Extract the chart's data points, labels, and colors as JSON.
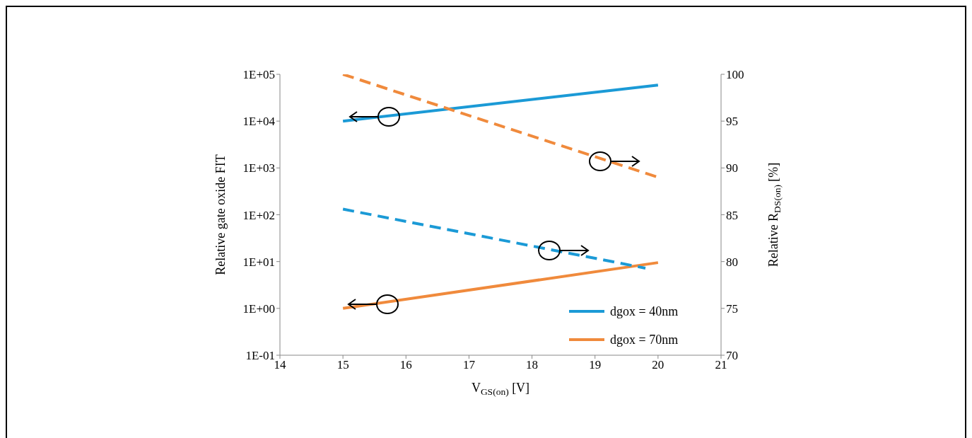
{
  "chart_data": {
    "type": "line",
    "xlabel": "V$_{GS(on)}$ [V]",
    "ylabel": "Relative  gate oxide  FIT",
    "y2label": "Relative  R$_{DS(on)}$ [%]",
    "log": "y",
    "xlim": [
      14,
      21
    ],
    "xticks": [
      14,
      15,
      16,
      17,
      18,
      19,
      20,
      21
    ],
    "ylim": [
      0.1,
      100000
    ],
    "yticks": [
      {
        "value": 0.1,
        "label": "1E-01"
      },
      {
        "value": 1,
        "label": "1E+00"
      },
      {
        "value": 10,
        "label": "1E+01"
      },
      {
        "value": 100,
        "label": "1E+02"
      },
      {
        "value": 1000,
        "label": "1E+03"
      },
      {
        "value": 10000,
        "label": "1E+04"
      },
      {
        "value": 100000,
        "label": "1E+05"
      }
    ],
    "y2lim": [
      70,
      100
    ],
    "y2ticks": [
      70,
      75,
      80,
      85,
      90,
      95,
      100
    ],
    "grid": false,
    "legend": "bottom right",
    "marker": "none",
    "series": [
      {
        "name": "dgox = 40nm",
        "color": "#1b9ad6",
        "x": [
          15,
          20
        ],
        "values": [
          10000,
          59000
        ],
        "line_style": "solid"
      },
      {
        "name": "dgox = 70nm",
        "color": "#f08a3c",
        "x": [
          15,
          20
        ],
        "values": [
          1,
          9.5
        ],
        "line_style": "solid"
      },
      {
        "color": "#1b9ad6",
        "x": [
          15,
          19.8
        ],
        "values": [
          85.6,
          79.3
        ],
        "axis": "y2",
        "line_style": "dashed"
      },
      {
        "color": "#f08a3c",
        "x": [
          15,
          20
        ],
        "values": [
          100,
          89
        ],
        "axis": "y2",
        "line_style": "dashed"
      }
    ]
  }
}
